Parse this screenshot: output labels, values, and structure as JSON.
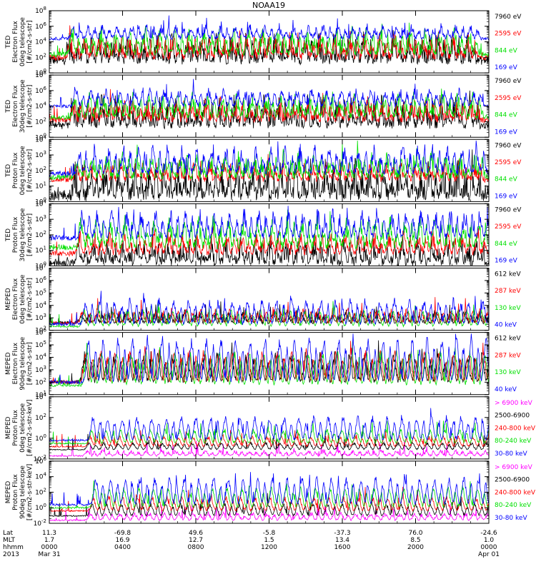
{
  "figure": {
    "title": "NOAA19",
    "colors": {
      "black": "#000000",
      "red": "#ff0000",
      "green": "#00e000",
      "blue": "#0000ff",
      "magenta": "#ff00ff"
    }
  },
  "chart_data": [
    {
      "type": "line",
      "ylabel": [
        "TED",
        "Electron Flux",
        "0deg telescope",
        "[#/cm2-s-str]"
      ],
      "yscale": "log",
      "ticks": [
        {
          "base": "10",
          "exp": "0"
        },
        {
          "base": "10",
          "exp": "2"
        },
        {
          "base": "10",
          "exp": "4"
        },
        {
          "base": "10",
          "exp": "6"
        },
        {
          "base": "10",
          "exp": "8"
        }
      ],
      "ylim": [
        1,
        100000000
      ],
      "series": [
        {
          "name": "7960 eV",
          "color": "#000000",
          "level": [
            0.2,
            0.45
          ],
          "noise": 0.35
        },
        {
          "name": "2595 eV",
          "color": "#ff0000",
          "level": [
            0.25,
            0.5
          ],
          "noise": 0.25
        },
        {
          "name": "844 eV",
          "color": "#00e000",
          "level": [
            0.3,
            0.6
          ],
          "noise": 0.2
        },
        {
          "name": "169 eV",
          "color": "#0000ff",
          "level": [
            0.55,
            0.72
          ],
          "noise": 0.12
        }
      ]
    },
    {
      "type": "line",
      "ylabel": [
        "TED",
        "Electron Flux",
        "30deg telescope",
        "[#/cm2-s-str]"
      ],
      "yscale": "log",
      "ticks": [
        {
          "base": "10",
          "exp": "0"
        },
        {
          "base": "10",
          "exp": "2"
        },
        {
          "base": "10",
          "exp": "4"
        },
        {
          "base": "10",
          "exp": "6"
        },
        {
          "base": "10",
          "exp": "8"
        }
      ],
      "ylim": [
        1,
        100000000
      ],
      "series": [
        {
          "name": "7960 eV",
          "color": "#000000",
          "level": [
            0.2,
            0.45
          ],
          "noise": 0.35
        },
        {
          "name": "2595 eV",
          "color": "#ff0000",
          "level": [
            0.28,
            0.5
          ],
          "noise": 0.25
        },
        {
          "name": "844 eV",
          "color": "#00e000",
          "level": [
            0.32,
            0.6
          ],
          "noise": 0.2
        },
        {
          "name": "169 eV",
          "color": "#0000ff",
          "level": [
            0.5,
            0.72
          ],
          "noise": 0.12
        }
      ]
    },
    {
      "type": "line",
      "ylabel": [
        "TED",
        "Proton Flux",
        "0deg telescope",
        "[#/cm2-s-str]"
      ],
      "yscale": "log",
      "ticks": [
        {
          "base": "10",
          "exp": "0"
        },
        {
          "base": "10",
          "exp": "1"
        },
        {
          "base": "10",
          "exp": "2"
        },
        {
          "base": "10",
          "exp": "3"
        },
        {
          "base": "10",
          "exp": "4"
        }
      ],
      "ylim": [
        1,
        50000
      ],
      "series": [
        {
          "name": "7960 eV",
          "color": "#000000",
          "level": [
            0.1,
            0.4
          ],
          "noise": 0.45
        },
        {
          "name": "2595 eV",
          "color": "#ff0000",
          "level": [
            0.35,
            0.55
          ],
          "noise": 0.2
        },
        {
          "name": "844 eV",
          "color": "#00e000",
          "level": [
            0.4,
            0.65
          ],
          "noise": 0.25
        },
        {
          "name": "169 eV",
          "color": "#0000ff",
          "level": [
            0.45,
            0.8
          ],
          "noise": 0.2
        }
      ]
    },
    {
      "type": "line",
      "ylabel": [
        "TED",
        "Proton Flux",
        "30deg telescope",
        "[#/cm2-s-str]"
      ],
      "yscale": "log",
      "ticks": [
        {
          "base": "10",
          "exp": "0"
        },
        {
          "base": "10",
          "exp": "1"
        },
        {
          "base": "10",
          "exp": "2"
        },
        {
          "base": "10",
          "exp": "3"
        },
        {
          "base": "10",
          "exp": "4"
        }
      ],
      "ylim": [
        1,
        50000
      ],
      "series": [
        {
          "name": "7960 eV",
          "color": "#000000",
          "level": [
            0.05,
            0.3
          ],
          "noise": 0.3
        },
        {
          "name": "2595 eV",
          "color": "#ff0000",
          "level": [
            0.2,
            0.45
          ],
          "noise": 0.2
        },
        {
          "name": "844 eV",
          "color": "#00e000",
          "level": [
            0.3,
            0.65
          ],
          "noise": 0.25
        },
        {
          "name": "169 eV",
          "color": "#0000ff",
          "level": [
            0.45,
            0.8
          ],
          "noise": 0.2
        }
      ]
    },
    {
      "type": "line",
      "ylabel": [
        "MEPED",
        "Electron Flux",
        "0deg telescope",
        "[#/cm2-s-str]"
      ],
      "yscale": "log",
      "ticks": [
        {
          "base": "10",
          "exp": "2"
        },
        {
          "base": "10",
          "exp": "3"
        },
        {
          "base": "10",
          "exp": "4"
        },
        {
          "base": "10",
          "exp": "5"
        },
        {
          "base": "10",
          "exp": "6"
        },
        {
          "base": "10",
          "exp": "7"
        }
      ],
      "ylim": [
        100,
        10000000
      ],
      "series": [
        {
          "name": "612 keV",
          "color": "#000000",
          "level": [
            0.12,
            0.25
          ],
          "noise": 0.12
        },
        {
          "name": "287 keV",
          "color": "#ff0000",
          "level": [
            0.12,
            0.3
          ],
          "noise": 0.1
        },
        {
          "name": "130 keV",
          "color": "#00e000",
          "level": [
            0.06,
            0.3
          ],
          "noise": 0.06
        },
        {
          "name": "40 keV",
          "color": "#0000ff",
          "level": [
            0.1,
            0.45
          ],
          "noise": 0.12
        }
      ]
    },
    {
      "type": "line",
      "ylabel": [
        "MEPED",
        "Electron Flux",
        "90deg telescope",
        "[#/cm2-s-str]"
      ],
      "yscale": "log",
      "ticks": [
        {
          "base": "10",
          "exp": "1"
        },
        {
          "base": "10",
          "exp": "2"
        },
        {
          "base": "10",
          "exp": "3"
        },
        {
          "base": "10",
          "exp": "4"
        },
        {
          "base": "10",
          "exp": "5"
        },
        {
          "base": "10",
          "exp": "6"
        }
      ],
      "ylim": [
        10,
        3000000
      ],
      "series": [
        {
          "name": "612 keV",
          "color": "#000000",
          "level": [
            0.2,
            0.6
          ],
          "noise": 0.15
        },
        {
          "name": "287 keV",
          "color": "#ff0000",
          "level": [
            0.2,
            0.65
          ],
          "noise": 0.12
        },
        {
          "name": "130 keV",
          "color": "#00e000",
          "level": [
            0.15,
            0.65
          ],
          "noise": 0.1
        },
        {
          "name": "40 keV",
          "color": "#0000ff",
          "level": [
            0.2,
            0.85
          ],
          "noise": 0.12
        }
      ]
    },
    {
      "type": "line",
      "ylabel": [
        "MEPED",
        "Proton Flux",
        "0deg telescope",
        "[#/cm2-s-str-keV]"
      ],
      "yscale": "log",
      "ticks": [
        {
          "base": "10",
          "exp": "-2"
        },
        {
          "base": "10",
          "exp": "0"
        },
        {
          "base": "10",
          "exp": "2"
        },
        {
          "base": "10",
          "exp": "4"
        }
      ],
      "ylim": [
        0.01,
        100000
      ],
      "series": [
        {
          "name": "> 6900 keV",
          "color": "#ff00ff",
          "level": [
            0.05,
            0.12
          ],
          "noise": 0.05
        },
        {
          "name": "2500-6900",
          "color": "#000000",
          "level": [
            0.15,
            0.25
          ],
          "noise": 0.04
        },
        {
          "name": "240-800 keV",
          "color": "#ff0000",
          "level": [
            0.2,
            0.35
          ],
          "noise": 0.05
        },
        {
          "name": "80-240 keV",
          "color": "#00e000",
          "level": [
            0.25,
            0.45
          ],
          "noise": 0.05
        },
        {
          "name": "30-80 keV",
          "color": "#0000ff",
          "level": [
            0.3,
            0.65
          ],
          "noise": 0.08
        }
      ]
    },
    {
      "type": "line",
      "ylabel": [
        "MEPED",
        "Proton Flux",
        "90deg telescope",
        "[#/cm2-s-str-keV]"
      ],
      "yscale": "log",
      "ticks": [
        {
          "base": "10",
          "exp": "-2"
        },
        {
          "base": "10",
          "exp": "0"
        },
        {
          "base": "10",
          "exp": "2"
        },
        {
          "base": "10",
          "exp": "4"
        },
        {
          "base": "10",
          "exp": "6"
        }
      ],
      "ylim": [
        0.01,
        1000000
      ],
      "series": [
        {
          "name": "> 6900 keV",
          "color": "#ff00ff",
          "level": [
            0.05,
            0.15
          ],
          "noise": 0.05
        },
        {
          "name": "2500-6900",
          "color": "#000000",
          "level": [
            0.12,
            0.3
          ],
          "noise": 0.05
        },
        {
          "name": "240-800 keV",
          "color": "#ff0000",
          "level": [
            0.2,
            0.4
          ],
          "noise": 0.06
        },
        {
          "name": "80-240 keV",
          "color": "#00e000",
          "level": [
            0.25,
            0.55
          ],
          "noise": 0.06
        },
        {
          "name": "30-80 keV",
          "color": "#0000ff",
          "level": [
            0.3,
            0.7
          ],
          "noise": 0.08
        }
      ]
    }
  ],
  "x_axis": {
    "row_labels": [
      "Lat",
      "MLT",
      "hhmm",
      "2013"
    ],
    "ticks": [
      {
        "lat": "11.3",
        "mlt": "1.7",
        "hhmm": "0000",
        "date": "Mar 31"
      },
      {
        "lat": "-69.8",
        "mlt": "16.9",
        "hhmm": "0400",
        "date": ""
      },
      {
        "lat": "49.6",
        "mlt": "12.7",
        "hhmm": "0800",
        "date": ""
      },
      {
        "lat": "-5.8",
        "mlt": "1.5",
        "hhmm": "1200",
        "date": ""
      },
      {
        "lat": "-37.3",
        "mlt": "13.4",
        "hhmm": "1600",
        "date": ""
      },
      {
        "lat": "76.0",
        "mlt": "8.5",
        "hhmm": "2000",
        "date": ""
      },
      {
        "lat": "-24.6",
        "mlt": "1.0",
        "hhmm": "0000",
        "date": "Apr 01"
      }
    ]
  }
}
